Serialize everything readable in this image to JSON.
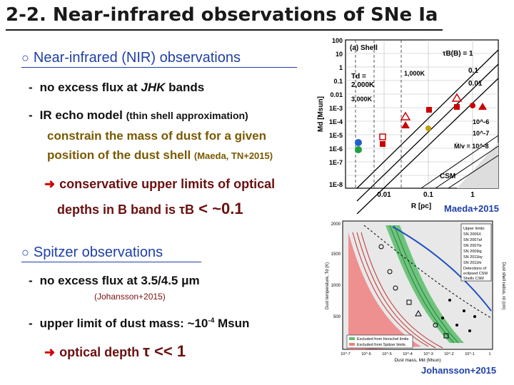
{
  "title": "2-2. Near-infrared observations of SNe Ia",
  "section1": {
    "marker": "○",
    "heading": "Near-infrared (NIR) observations",
    "bullet1": {
      "dash": "-",
      "text": "no excess flux at ",
      "bands": "JHK",
      "tail": " bands"
    },
    "bullet2": {
      "dash": "-",
      "text": "IR echo model ",
      "note": "(thin shell approximation)"
    },
    "sub_line1": "constrain the mass of dust for a given",
    "sub_line2": "position of the dust shell ",
    "sub_cite": "(Maeda, TN+2015)",
    "arrow": "➜",
    "conclusion_line1": "conservative upper limits of optical",
    "conclusion_line2_a": "depths in B band is ",
    "conclusion_tau": "τB",
    "conclusion_line2_b": " < ~0.1"
  },
  "section2": {
    "marker": "○",
    "heading": "Spitzer observations",
    "bullet1": {
      "dash": "-",
      "text": "no excess flux at 3.5/4.5 μm"
    },
    "cite": "(Johansson+2015)",
    "bullet2": {
      "dash": "-",
      "text": "upper limit of dust mass:  ~10",
      "exp": "-4",
      "unit": " Msun"
    },
    "arrow": "➜",
    "conclusion_a": "optical depth  ",
    "conclusion_tau": "τ",
    "conclusion_b": " << 1"
  },
  "figure1": {
    "panel_label": "(a) Shell",
    "td_label_1": "Td =",
    "td_label_2": "2,000K",
    "td_label_3": "1,000K",
    "td_label_4": "3,000K",
    "tau_label": "τB(B) = 1",
    "tau_01": "0.1",
    "tau_001": "0.01",
    "td_label_mdot": "10^-6",
    "td_label_mdot2": "10^-7",
    "mdot_label": "Ṁ/v = 10^-8",
    "csm_label": "CSM",
    "ylabel": "Md [Msun]",
    "xlabel": "R [pc]",
    "yticks": [
      "100",
      "10",
      "1",
      "0.1",
      "0.01",
      "1E-3",
      "1E-4",
      "1E-5",
      "1E-6",
      "1E-7",
      "1E-8"
    ],
    "xticks": [
      "0.01",
      "0.1",
      "1"
    ],
    "credit": "Maeda+2015"
  },
  "figure2": {
    "xlabel": "Dust mass, Md (Msun)",
    "ylabel_left": "Dust temperature, Td (K)",
    "ylabel_right": "Dust shell radius, rd (cm)",
    "yticks_left": [
      "2000",
      "1500",
      "1000",
      "500"
    ],
    "xticks": [
      "10^-7",
      "10^-6",
      "10^-5",
      "10^-4",
      "10^-3",
      "10^-2",
      "10^-1",
      "1"
    ],
    "legend": [
      "Upper limits:",
      "SN 2006X",
      "SN 2007af",
      "SN 2007le",
      "SN 2009ig",
      "SN 2011by",
      "SN 2011fe",
      "Detections of",
      "eclipsed CSM",
      "Shells CSM"
    ],
    "bottom_legend_1": "Excluded from Herschel limits",
    "bottom_legend_2": "Excluded from Spitzer limits",
    "credit": "Johansson+2015"
  }
}
